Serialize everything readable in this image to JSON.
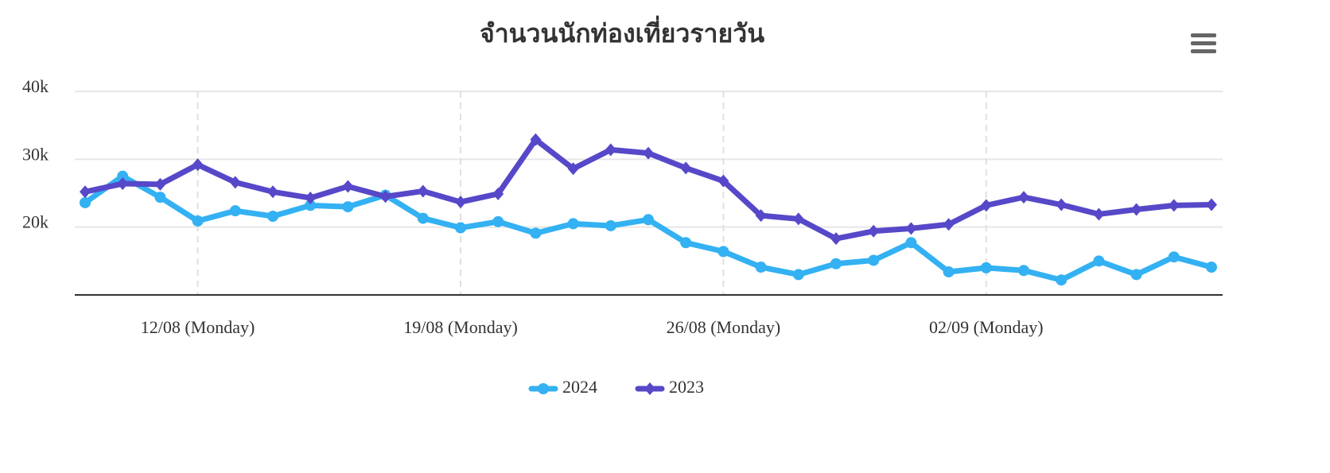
{
  "chart_data": {
    "type": "line",
    "title": "จำนวนนักท่องเที่ยวรายวัน",
    "categories": [
      null,
      null,
      null,
      "12/08 (Monday)",
      null,
      null,
      null,
      null,
      null,
      null,
      "19/08 (Monday)",
      null,
      null,
      null,
      null,
      null,
      null,
      "26/08 (Monday)",
      null,
      null,
      null,
      null,
      null,
      null,
      "02/09 (Monday)",
      null,
      null,
      null,
      null,
      null,
      null
    ],
    "series": [
      {
        "name": "2024",
        "color": "#33b1f2",
        "marker": "circle",
        "values": [
          23600,
          27500,
          24400,
          20900,
          22400,
          21600,
          23200,
          23000,
          24700,
          21300,
          19900,
          20800,
          19100,
          20500,
          20200,
          21100,
          17700,
          16400,
          14100,
          13000,
          14600,
          15100,
          17700,
          13400,
          14000,
          13600,
          12200,
          15000,
          13000,
          15600,
          14100
        ]
      },
      {
        "name": "2023",
        "color": "#5648c8",
        "marker": "diamond",
        "values": [
          25200,
          26400,
          26300,
          29200,
          26600,
          25200,
          24300,
          26000,
          24500,
          25300,
          23700,
          24900,
          32900,
          28600,
          31400,
          30900,
          28700,
          26800,
          21700,
          21200,
          18300,
          19400,
          19800,
          20400,
          23200,
          24400,
          23300,
          21900,
          22600,
          23200,
          23300
        ]
      }
    ],
    "ylim": [
      10000,
      40000
    ],
    "yticks": [
      {
        "value": 20000,
        "label": "20k"
      },
      {
        "value": 30000,
        "label": "30k"
      },
      {
        "value": 40000,
        "label": "40k"
      }
    ],
    "grid": true,
    "legend": "bottom"
  }
}
